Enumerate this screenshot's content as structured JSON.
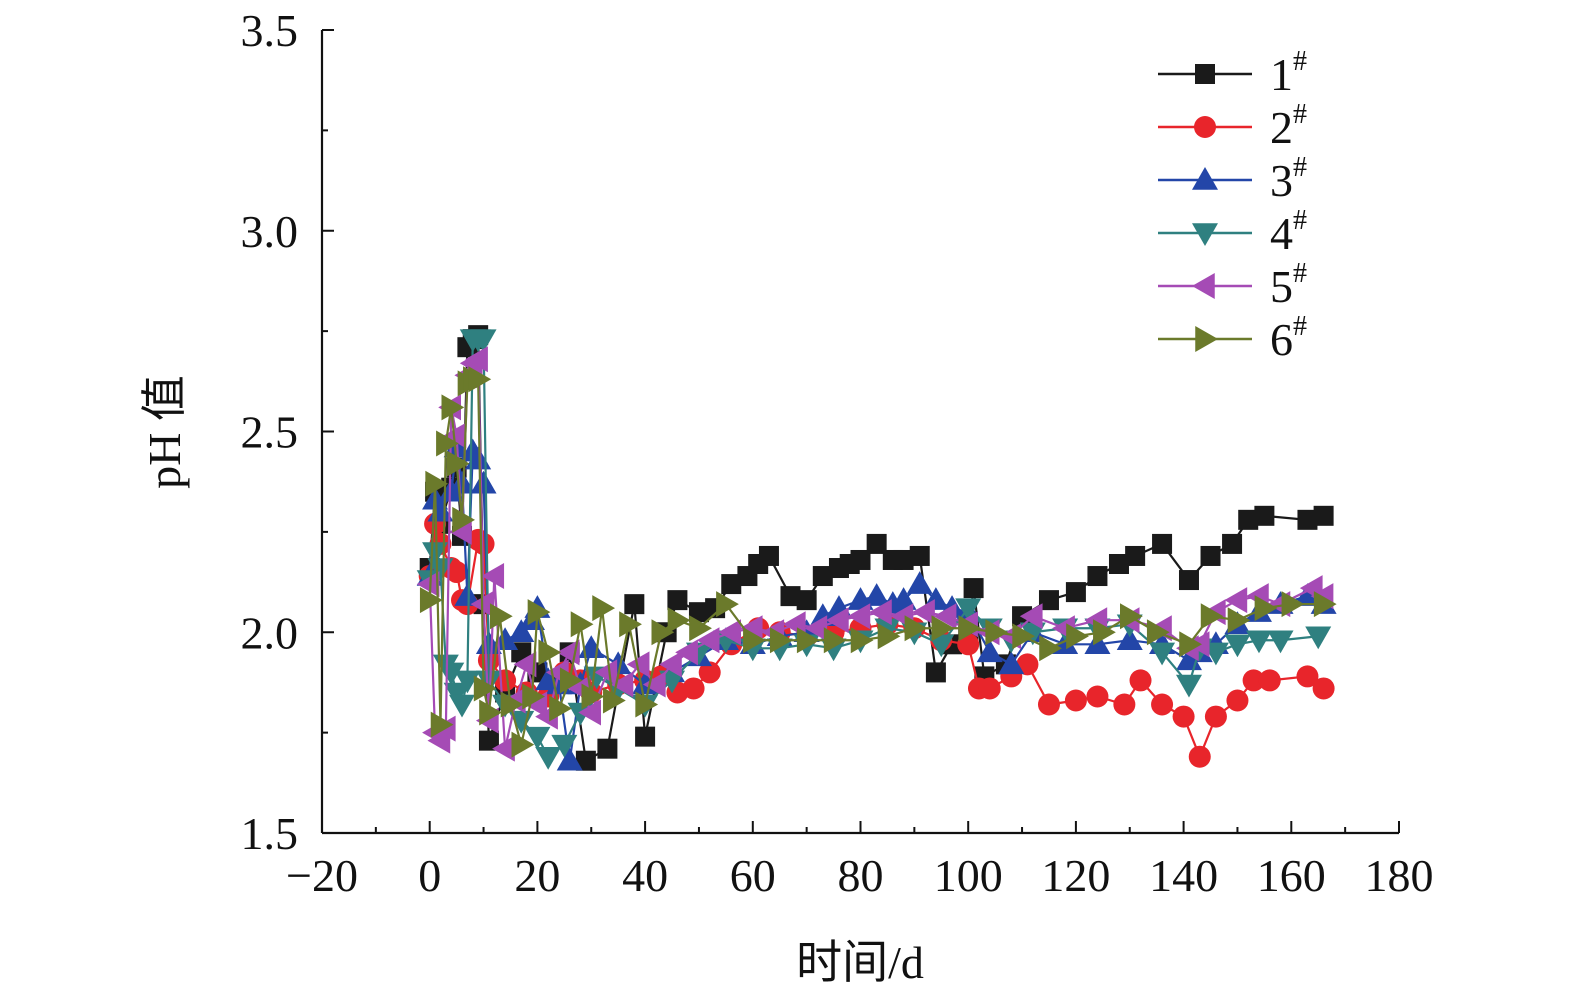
{
  "chart_data": {
    "type": "line",
    "title": "",
    "xlabel": "时间/d",
    "ylabel": "pH 值",
    "xlim": [
      -20,
      180
    ],
    "ylim": [
      1.5,
      3.5
    ],
    "xticks": [
      -20,
      0,
      20,
      40,
      60,
      80,
      100,
      120,
      140,
      160,
      180
    ],
    "xtick_labels": [
      "−20",
      "0",
      "20",
      "40",
      "60",
      "80",
      "100",
      "120",
      "140",
      "160",
      "180"
    ],
    "yticks": [
      1.5,
      2.0,
      2.5,
      3.0,
      3.5
    ],
    "ytick_labels": [
      "1.5",
      "2.0",
      "2.5",
      "3.0",
      "3.5"
    ],
    "grid": false,
    "legend_position": "top-right",
    "series": [
      {
        "name": "1",
        "name_sup": "#",
        "color": "#1a1a1a",
        "marker": "square",
        "x": [
          0,
          1,
          2,
          4,
          5,
          6,
          7,
          8,
          9,
          10,
          11,
          14,
          17,
          20,
          23,
          26,
          29,
          33,
          38,
          40,
          44,
          46,
          50,
          53,
          56,
          59,
          61,
          63,
          67,
          70,
          73,
          76,
          78,
          80,
          83,
          86,
          88,
          91,
          94,
          97,
          100,
          101,
          103,
          107,
          110,
          115,
          120,
          124,
          128,
          131,
          136,
          141,
          145,
          149,
          152,
          155,
          163,
          166
        ],
        "y": [
          2.16,
          2.35,
          2.27,
          2.36,
          2.41,
          2.24,
          2.71,
          2.73,
          2.74,
          2.07,
          1.73,
          1.85,
          1.95,
          1.9,
          1.88,
          1.95,
          1.68,
          1.71,
          2.07,
          1.74,
          2.0,
          2.08,
          2.05,
          2.06,
          2.12,
          2.14,
          2.17,
          2.19,
          2.09,
          2.08,
          2.14,
          2.16,
          2.17,
          2.18,
          2.22,
          2.18,
          2.18,
          2.19,
          1.9,
          1.97,
          2.0,
          2.11,
          1.89,
          1.92,
          2.04,
          2.08,
          2.1,
          2.14,
          2.17,
          2.19,
          2.22,
          2.13,
          2.19,
          2.22,
          2.28,
          2.29,
          2.28,
          2.29
        ]
      },
      {
        "name": "2",
        "name_sup": "#",
        "color": "#e8252b",
        "marker": "circle",
        "x": [
          0,
          1,
          2,
          4,
          5,
          6,
          7,
          9,
          10,
          11,
          14,
          18,
          22,
          25,
          28,
          30,
          35,
          40,
          43,
          46,
          49,
          52,
          56,
          61,
          65,
          70,
          75,
          80,
          85,
          90,
          95,
          100,
          102,
          104,
          108,
          111,
          115,
          120,
          124,
          129,
          132,
          136,
          140,
          143,
          146,
          150,
          153,
          156,
          163,
          166
        ],
        "y": [
          2.14,
          2.27,
          2.22,
          2.16,
          2.15,
          2.08,
          2.07,
          2.23,
          2.22,
          1.93,
          1.88,
          1.85,
          1.84,
          1.9,
          1.88,
          1.85,
          1.87,
          1.88,
          1.89,
          1.85,
          1.86,
          1.9,
          1.97,
          2.01,
          2.0,
          1.99,
          2.0,
          2.01,
          2.02,
          2.01,
          1.98,
          1.97,
          1.86,
          1.86,
          1.89,
          1.92,
          1.82,
          1.83,
          1.84,
          1.82,
          1.88,
          1.82,
          1.79,
          1.69,
          1.79,
          1.83,
          1.88,
          1.88,
          1.89,
          1.86
        ]
      },
      {
        "name": "3",
        "name_sup": "#",
        "color": "#2346a8",
        "marker": "triangle-up",
        "x": [
          0,
          1,
          2,
          4,
          5,
          6,
          7,
          8,
          9,
          10,
          11,
          14,
          17,
          19,
          20,
          22,
          24,
          26,
          28,
          30,
          35,
          40,
          45,
          50,
          55,
          60,
          65,
          70,
          73,
          76,
          80,
          83,
          86,
          88,
          91,
          94,
          97,
          100,
          104,
          108,
          112,
          118,
          124,
          130,
          136,
          141,
          143,
          146,
          150,
          154,
          158,
          163,
          166
        ],
        "y": [
          2.14,
          2.33,
          2.3,
          2.35,
          2.46,
          2.37,
          2.09,
          2.45,
          2.43,
          2.37,
          1.97,
          1.98,
          2.0,
          2.03,
          2.06,
          1.88,
          1.87,
          1.68,
          1.87,
          1.96,
          1.92,
          1.87,
          1.9,
          1.94,
          1.98,
          1.97,
          1.99,
          2.0,
          2.04,
          2.06,
          2.08,
          2.09,
          2.07,
          2.08,
          2.12,
          2.08,
          2.06,
          2.05,
          1.95,
          1.92,
          2.0,
          1.97,
          1.97,
          1.98,
          1.97,
          1.93,
          1.95,
          1.97,
          2.02,
          2.05,
          2.07,
          2.09,
          2.07
        ]
      },
      {
        "name": "4",
        "name_sup": "#",
        "color": "#2f8080",
        "marker": "triangle-down",
        "x": [
          0,
          1,
          2,
          3,
          4,
          5,
          6,
          7,
          8,
          9,
          10,
          11,
          14,
          17,
          20,
          22,
          25,
          28,
          31,
          35,
          40,
          45,
          50,
          55,
          60,
          65,
          70,
          75,
          80,
          85,
          90,
          95,
          100,
          104,
          108,
          112,
          118,
          124,
          130,
          136,
          141,
          143,
          146,
          150,
          154,
          158,
          165
        ],
        "y": [
          2.13,
          2.2,
          2.16,
          1.92,
          1.9,
          1.85,
          1.82,
          1.88,
          2.73,
          2.73,
          2.73,
          1.88,
          1.82,
          1.78,
          1.74,
          1.69,
          1.72,
          1.8,
          1.89,
          1.86,
          1.82,
          1.88,
          1.95,
          1.98,
          1.96,
          1.96,
          1.97,
          1.96,
          1.98,
          2.01,
          2.0,
          1.97,
          2.06,
          2.01,
          1.98,
          2.0,
          2.01,
          2.01,
          2.02,
          1.95,
          1.87,
          1.96,
          1.95,
          1.97,
          1.98,
          1.98,
          1.99
        ]
      },
      {
        "name": "5",
        "name_sup": "#",
        "color": "#a54bb5",
        "marker": "triangle-left",
        "x": [
          0,
          1,
          2,
          3,
          4,
          5,
          6,
          7,
          8,
          9,
          10,
          11,
          12,
          14,
          16,
          18,
          20,
          22,
          24,
          26,
          28,
          30,
          33,
          36,
          39,
          42,
          45,
          48,
          52,
          56,
          60,
          64,
          68,
          72,
          76,
          80,
          84,
          88,
          92,
          96,
          100,
          104,
          108,
          112,
          118,
          124,
          130,
          136,
          141,
          143,
          146,
          150,
          154,
          158,
          164,
          166
        ],
        "y": [
          2.12,
          1.75,
          1.73,
          1.76,
          2.56,
          2.49,
          2.25,
          2.64,
          2.67,
          2.68,
          2.07,
          1.78,
          2.14,
          1.71,
          1.83,
          1.92,
          1.82,
          1.79,
          1.9,
          1.95,
          1.86,
          1.8,
          1.9,
          1.87,
          1.92,
          1.87,
          1.92,
          1.95,
          1.98,
          2.0,
          2.01,
          2.0,
          2.02,
          2.01,
          2.03,
          2.04,
          2.05,
          2.04,
          2.05,
          2.04,
          2.02,
          2.0,
          1.99,
          2.04,
          2.01,
          2.03,
          2.03,
          2.01,
          1.96,
          1.97,
          2.05,
          2.08,
          2.09,
          2.07,
          2.11,
          2.09
        ]
      },
      {
        "name": "6",
        "name_sup": "#",
        "color": "#6b7a2b",
        "marker": "triangle-right",
        "x": [
          0,
          1,
          2,
          3,
          4,
          5,
          6,
          7,
          8,
          9,
          10,
          11,
          13,
          15,
          17,
          19,
          20,
          22,
          24,
          26,
          28,
          30,
          32,
          34,
          37,
          40,
          43,
          46,
          50,
          55,
          60,
          65,
          70,
          75,
          80,
          85,
          90,
          95,
          100,
          105,
          110,
          115,
          120,
          125,
          130,
          135,
          141,
          145,
          150,
          155,
          160,
          166
        ],
        "y": [
          2.08,
          2.37,
          1.77,
          2.47,
          2.56,
          2.42,
          2.28,
          2.62,
          2.63,
          2.63,
          1.86,
          1.8,
          2.04,
          1.82,
          1.72,
          1.84,
          2.05,
          1.95,
          1.81,
          1.88,
          2.02,
          1.84,
          2.06,
          1.83,
          2.02,
          1.82,
          2.0,
          2.03,
          2.01,
          2.07,
          1.98,
          1.98,
          1.98,
          1.98,
          1.98,
          1.99,
          2.01,
          2.01,
          2.01,
          2.0,
          1.99,
          1.96,
          1.99,
          2.0,
          2.04,
          2.0,
          1.97,
          2.04,
          2.03,
          2.06,
          2.07,
          2.07
        ]
      }
    ]
  }
}
